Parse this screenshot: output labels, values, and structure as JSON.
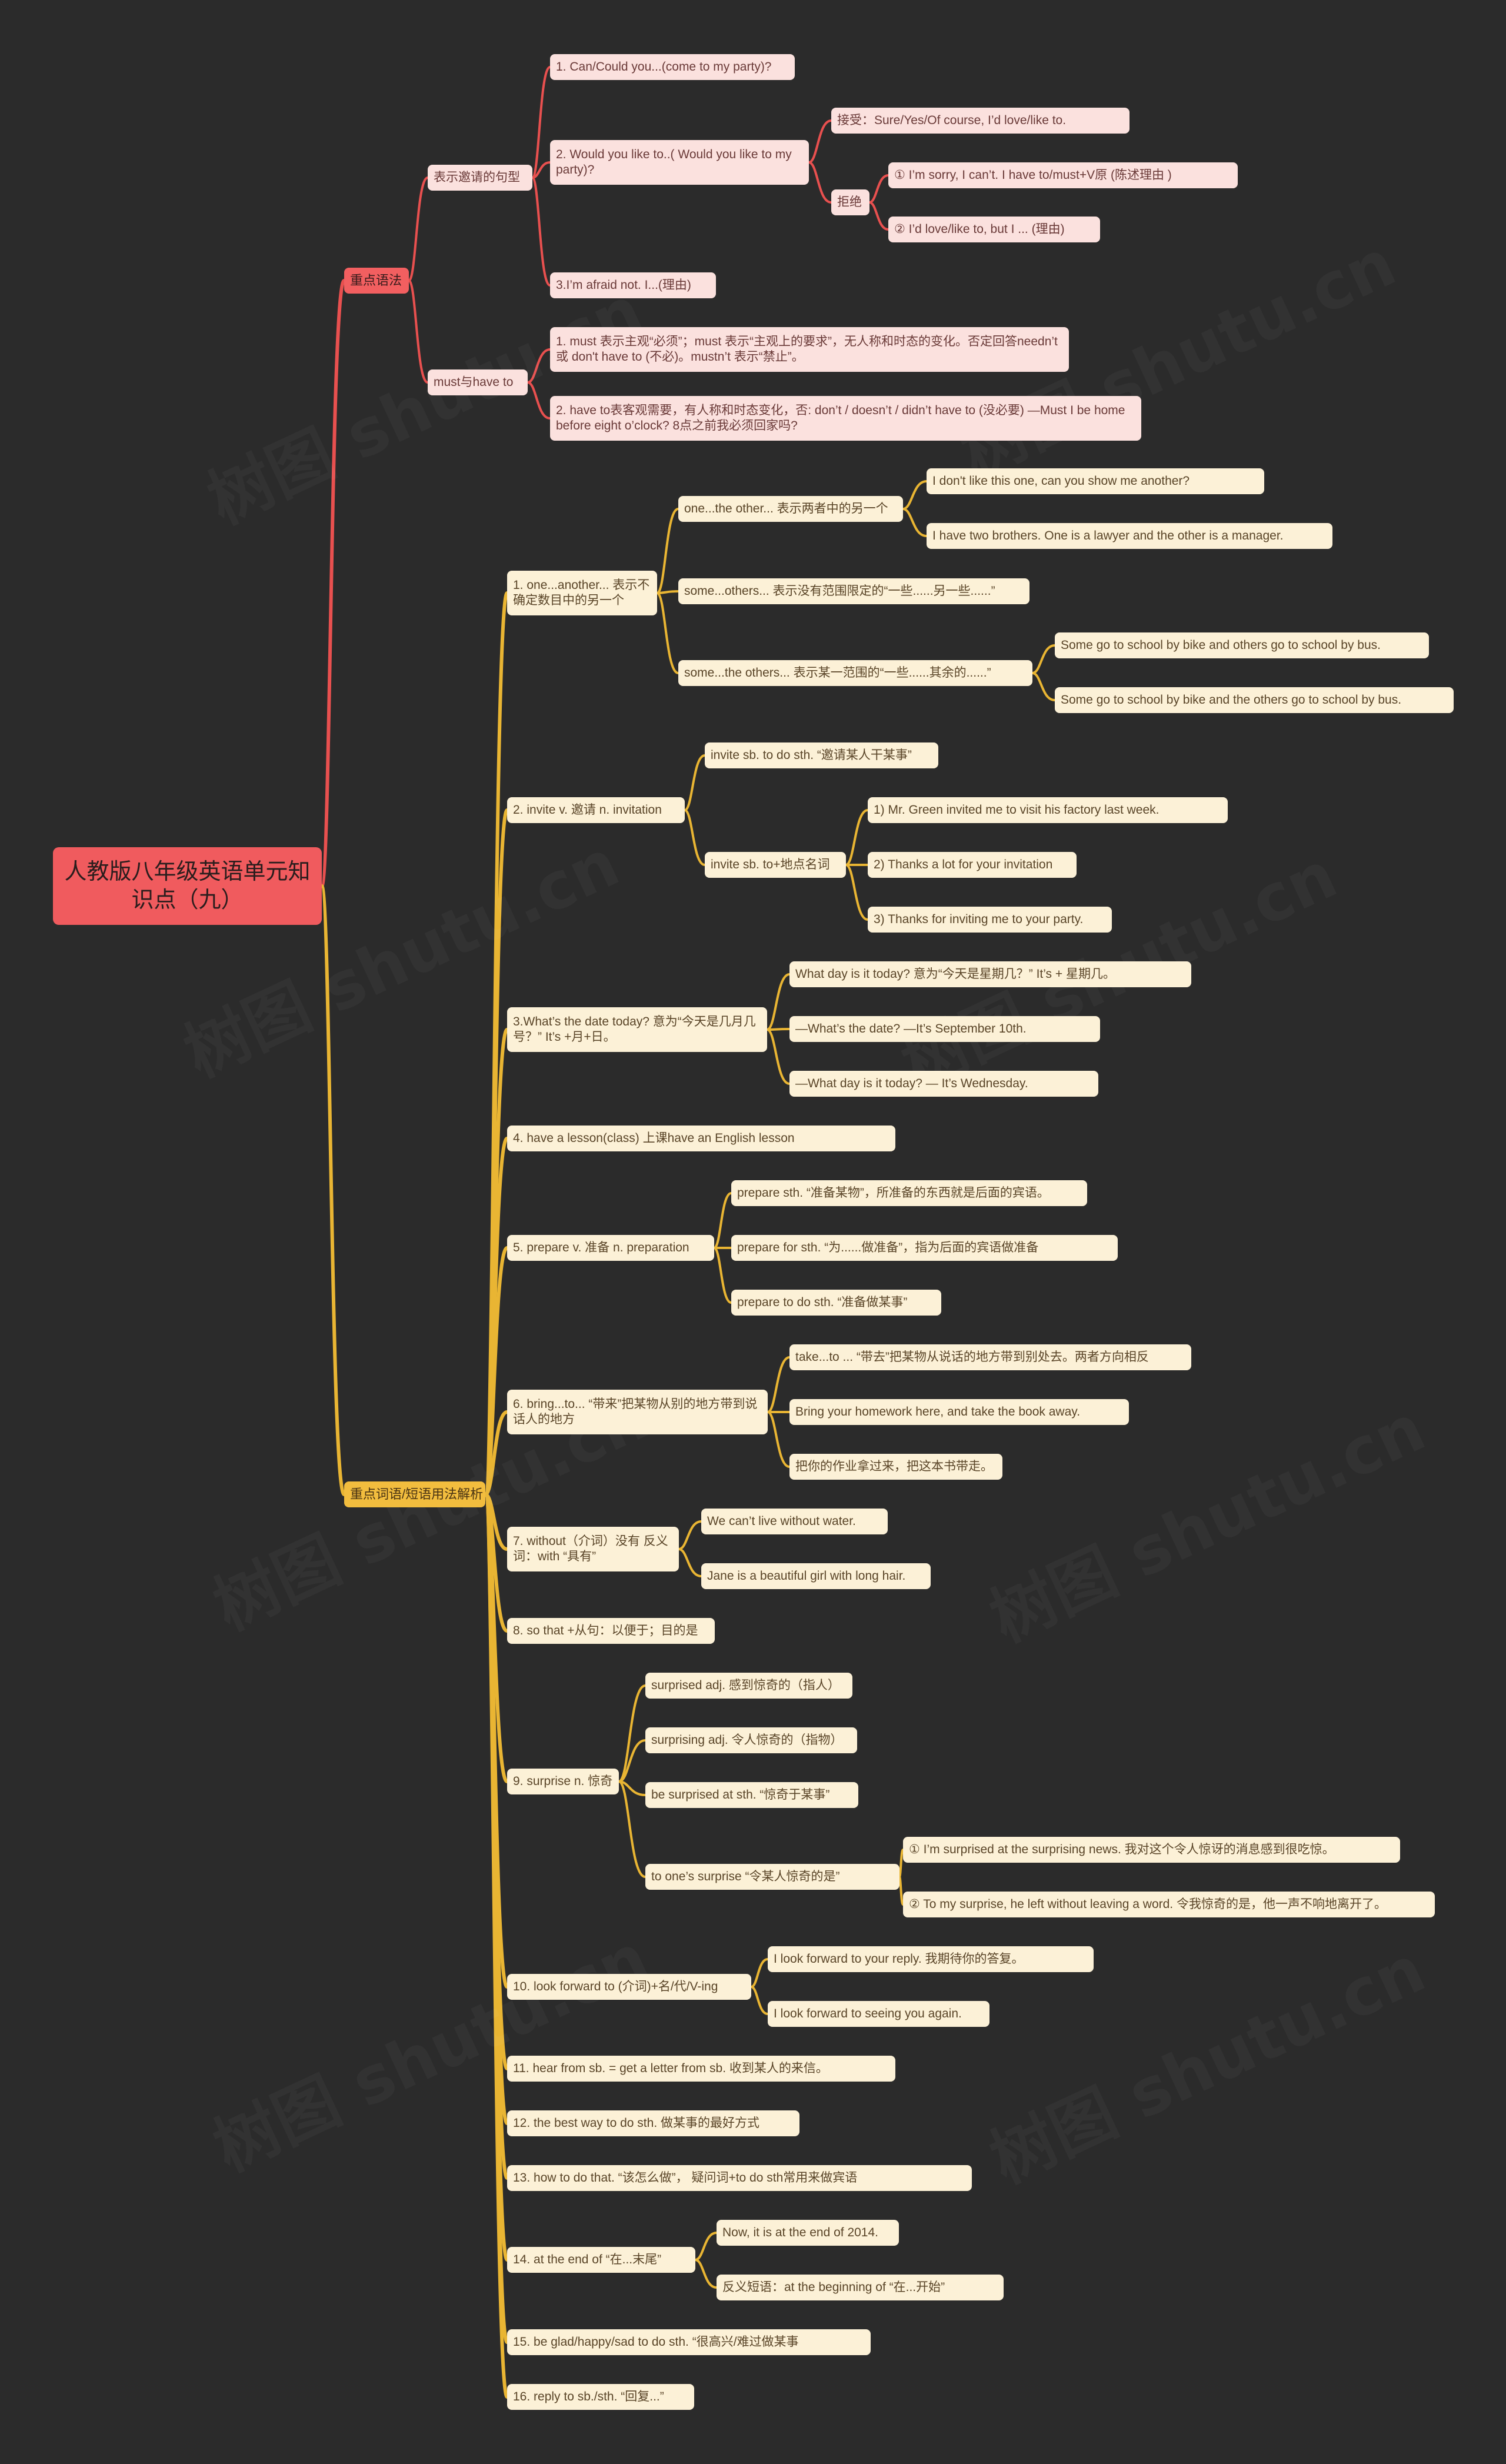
{
  "colors": {
    "background": "#2b2b2b",
    "root": "#f05b5e",
    "branch_red": "#f25f60",
    "branch_amber": "#f2bd3e",
    "leaf_pink": "#fbe1de",
    "leaf_cream": "#fcf1d7",
    "line_red": "#e8504f",
    "line_amber": "#e9b533"
  },
  "root": "人教版八年级英语单元知识点（九）",
  "grammar": {
    "label": "重点语法",
    "invite_patterns": {
      "label": "表示邀请的句型",
      "p1": "1. Can/Could you...(come to my party)?",
      "p2": "2. Would you like to..( Would you like to my party)?",
      "accept": "接受：Sure/Yes/Of course, I’d love/like to.",
      "refuse": {
        "label": "拒绝",
        "r1": "① I’m sorry, I can’t. I have to/must+V原 (陈述理由 )",
        "r2": "② I’d love/like to, but I ... (理由)"
      },
      "p3": "3.I’m afraid not. I...(理由)"
    },
    "must_have_to": {
      "label": "must与have to",
      "m1": "1. must 表示主观“必须”；must 表示“主观上的要求”，无人称和时态的变化。否定回答needn’t 或 don't have to (不必)。mustn’t 表示“禁止”。",
      "m2": "2. have to表客观需要，有人称和时态变化，否: don’t / doesn’t / didn’t have to (没必要) —Must I be home before eight o’clock? 8点之前我必须回家吗?"
    }
  },
  "words": {
    "label": "重点词语/短语用法解析",
    "w1": {
      "label": "1. one...another... 表示不确定数目中的另一个",
      "a": "one...the other... 表示两者中的另一个",
      "a1": "I don't like this one, can you show me another?",
      "a2": "I have two brothers. One is a lawyer and the other is a manager.",
      "b": "some...others... 表示没有范围限定的“一些......另一些......”",
      "c": "some...the others... 表示某一范围的“一些......其余的......”",
      "c1": "Some go to school by bike and others go to school by bus.",
      "c2": "Some go to school by bike and the others go to school by bus."
    },
    "w2": {
      "label": "2. invite v. 邀请 n. invitation",
      "a": "invite sb. to do sth. “邀请某人干某事”",
      "b": "invite sb. to+地点名词",
      "b1": "1) Mr. Green invited me to visit his factory last week.",
      "b2": "2) Thanks a lot for your invitation",
      "b3": "3) Thanks for inviting me to your party."
    },
    "w3": {
      "label": "3.What’s the date today? 意为“今天是几月几号？” It’s +月+日。",
      "a": "What day is it today? 意为“今天是星期几？” It’s + 星期几。",
      "b": "—What’s the date? —It’s September 10th.",
      "c": "—What day is it today? — It’s Wednesday."
    },
    "w4": "4. have a lesson(class) 上课have an English lesson",
    "w5": {
      "label": "5. prepare v. 准备 n. preparation",
      "a": "prepare sth. “准备某物”，所准备的东西就是后面的宾语。",
      "b": "prepare for sth. “为......做准备”，指为后面的宾语做准备",
      "c": "prepare to do sth. “准备做某事”"
    },
    "w6": {
      "label": "6. bring...to... “带来”把某物从别的地方带到说话人的地方",
      "a": "take...to ... “带去”把某物从说话的地方带到别处去。两者方向相反",
      "b": "Bring your homework here, and take the book away.",
      "c": "把你的作业拿过来，把这本书带走。"
    },
    "w7": {
      "label": "7. without（介词）没有 反义词：with “具有”",
      "a": "We can’t live without water.",
      "b": "Jane is a beautiful girl with long hair."
    },
    "w8": "8. so that +从句：以便于；目的是",
    "w9": {
      "label": "9. surprise n. 惊奇",
      "a": "surprised adj. 感到惊奇的（指人）",
      "b": "surprising adj. 令人惊奇的（指物）",
      "c": "be surprised at sth. “惊奇于某事”",
      "d": "to one’s surprise “令某人惊奇的是”",
      "d1": "① I’m surprised at the surprising news. 我对这个令人惊讶的消息感到很吃惊。",
      "d2": "② To my surprise, he left without leaving a word. 令我惊奇的是，他一声不响地离开了。"
    },
    "w10": {
      "label": "10. look forward to (介词)+名/代/V-ing",
      "a": "I look forward to your reply. 我期待你的答复。",
      "b": "I look forward to seeing you again."
    },
    "w11": "11. hear from sb. = get a letter from sb. 收到某人的来信。",
    "w12": "12. the best way to do sth. 做某事的最好方式",
    "w13": "13. how to do that. “该怎么做”， 疑问词+to do sth常用来做宾语",
    "w14": {
      "label": "14. at the end of “在...末尾”",
      "a": "Now, it is at the end of 2014.",
      "b": "反义短语：at the beginning of “在...开始”"
    },
    "w15": "15. be glad/happy/sad to do sth. “很高兴/难过做某事",
    "w16": "16. reply to sb./sth. “回复...”"
  },
  "watermark": "树图 shutu.cn"
}
